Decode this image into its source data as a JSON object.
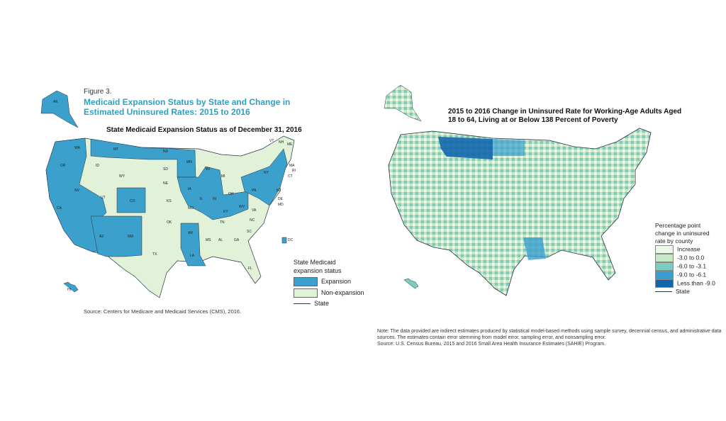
{
  "left": {
    "figure_label": "Figure 3.",
    "title": "Medicaid Expansion Status by State and Change in Estimated Uninsured Rates: 2015 to 2016",
    "subtitle": "State Medicaid Expansion Status as of December 31, 2016",
    "legend": {
      "title": "State Medicaid expansion status",
      "items": [
        {
          "label": "Expansion",
          "color": "#3ba0cc"
        },
        {
          "label": "Non-expansion",
          "color": "#e2f2d9"
        }
      ],
      "line_label": "State"
    },
    "source": "Source: Centers for Medicare and Medicaid Services (CMS), 2016.",
    "states": {
      "expansion": [
        "AK",
        "HI",
        "WA",
        "OR",
        "CA",
        "NV",
        "AZ",
        "NM",
        "CO",
        "MT",
        "ND",
        "MN",
        "IA",
        "IL",
        "IN",
        "OH",
        "MI",
        "KY",
        "WV",
        "AR",
        "LA",
        "PA",
        "NY",
        "NH",
        "VT",
        "MA",
        "RI",
        "CT",
        "NJ",
        "DE",
        "MD",
        "DC"
      ],
      "non_expansion": [
        "ID",
        "WY",
        "UT",
        "SD",
        "NE",
        "KS",
        "OK",
        "TX",
        "MO",
        "WI",
        "TN",
        "MS",
        "AL",
        "GA",
        "SC",
        "NC",
        "VA",
        "FL",
        "ME"
      ]
    }
  },
  "right": {
    "title": "2015 to 2016 Change in Uninsured Rate for Working-Age Adults Aged 18 to 64, Living at or Below 138 Percent of Poverty",
    "legend": {
      "title": "Percentage point change in uninsured rate by county",
      "items": [
        {
          "label": "Increase",
          "color": "#eef8e8"
        },
        {
          "label": "-3.0  to  0.0",
          "color": "#c6e8c4"
        },
        {
          "label": "-6.0  to  -3.1",
          "color": "#7ccdc0"
        },
        {
          "label": "-9.0  to  -6.1",
          "color": "#3a9fd0"
        },
        {
          "label": "Less than -9.0",
          "color": "#1266ad"
        }
      ],
      "line_label": "State"
    },
    "note": "Note: The data provided are indirect estimates produced by statistical model-based methods using sample survey, decennial census, and administrative data sources. The estimates contain error stemming from model error, sampling error, and nonsampling error.",
    "source": "Source: U.S. Census Bureau, 2015 and 2016 Small Area Health Insurance Estimates (SAHIE) Program."
  }
}
